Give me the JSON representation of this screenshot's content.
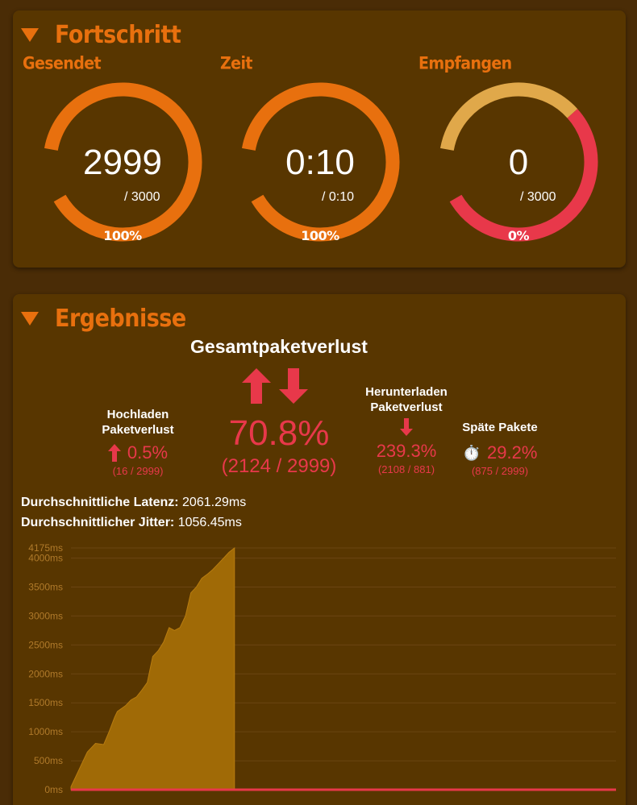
{
  "progress": {
    "title": "Fortschritt",
    "gauges": [
      {
        "label": "Gesendet",
        "value": "2999",
        "total": "/ 3000",
        "percent": "100%",
        "fraction": 1.0
      },
      {
        "label": "Zeit",
        "value": "0:10",
        "total": "/ 0:10",
        "percent": "100%",
        "fraction": 1.0
      },
      {
        "label": "Empfangen",
        "value": "0",
        "total": "/ 3000",
        "percent": "0%",
        "fraction": 0.0
      }
    ]
  },
  "results": {
    "title": "Ergebnisse",
    "total": {
      "label": "Gesamtpaketverlust",
      "percent": "70.8%",
      "count": "(2124 / 2999)"
    },
    "upload": {
      "label_line1": "Hochladen",
      "label_line2": "Paketverlust",
      "percent": "0.5%",
      "count": "(16 / 2999)"
    },
    "download": {
      "label_line1": "Herunterladen",
      "label_line2": "Paketverlust",
      "percent": "239.3%",
      "count": "(2108 / 881)"
    },
    "late": {
      "label": "Späte Pakete",
      "icon": "⏱️",
      "percent": "29.2%",
      "count": "(875 / 2999)"
    },
    "latency": {
      "label": "Durchschnittliche Latenz:",
      "value": "2061.29ms"
    },
    "jitter": {
      "label": "Durchschnittlicher Jitter:",
      "value": "1056.45ms"
    }
  },
  "colors": {
    "accent": "#e8700e",
    "loss": "#e8384a",
    "gauge_track_received": "#e0a84a",
    "chart_fill": "#a06a06"
  },
  "chart_data": {
    "type": "area",
    "y_unit": "ms",
    "ylim": [
      0,
      4175
    ],
    "yticks": [
      0,
      500,
      1000,
      1500,
      2000,
      2500,
      3000,
      3500,
      4000,
      4175
    ],
    "ytick_labels": [
      "0ms",
      "500ms",
      "1000ms",
      "1500ms",
      "2000ms",
      "2500ms",
      "3000ms",
      "3500ms",
      "4000ms",
      "4175ms"
    ],
    "x_range": [
      0,
      1
    ],
    "series": [
      {
        "kind": "latency",
        "x": [
          0,
          0.01,
          0.02,
          0.03,
          0.045,
          0.06,
          0.07,
          0.08,
          0.085,
          0.1,
          0.11,
          0.12,
          0.13,
          0.14,
          0.15,
          0.16,
          0.17,
          0.18,
          0.19,
          0.2,
          0.21,
          0.22,
          0.23,
          0.24,
          0.25,
          0.26,
          0.27,
          0.28,
          0.29,
          0.3
        ],
        "values": [
          50,
          250,
          450,
          650,
          800,
          780,
          1000,
          1250,
          1350,
          1450,
          1550,
          1600,
          1720,
          1850,
          2300,
          2400,
          2550,
          2800,
          2750,
          2800,
          3000,
          3400,
          3500,
          3650,
          3720,
          3800,
          3900,
          4000,
          4100,
          4175
        ]
      },
      {
        "kind": "loss-baseline",
        "x": [
          0,
          1
        ],
        "values": [
          0,
          0
        ]
      }
    ]
  }
}
